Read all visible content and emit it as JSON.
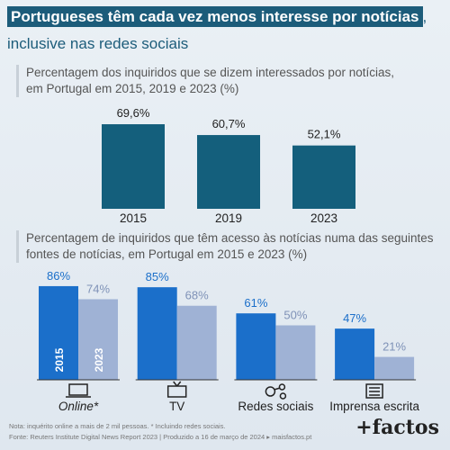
{
  "header": {
    "title_highlight": "Portugueses têm cada vez menos interesse por notícias",
    "title_rest": ", inclusive nas redes sociais"
  },
  "chart_data": [
    {
      "type": "bar",
      "title": "Percentagem dos inquiridos que se dizem interessados por notícias, em Portugal em 2015, 2019 e 2023 (%)",
      "categories": [
        "2015",
        "2019",
        "2023"
      ],
      "values": [
        69.6,
        60.7,
        52.1
      ],
      "value_labels": [
        "69,6%",
        "60,7%",
        "52,1%"
      ],
      "color": "#145f7c"
    },
    {
      "type": "grouped_bar",
      "title": "Percentagem de inquiridos que têm acesso às notícias numa das seguintes fontes de notícias, em Portugal em 2015 e 2023 (%)",
      "categories": [
        "Online*",
        "TV",
        "Redes sociais",
        "Imprensa escrita"
      ],
      "series": [
        {
          "name": "2015",
          "color": "#1b6fca",
          "values": [
            86,
            85,
            61,
            47
          ],
          "value_labels": [
            "86%",
            "85%",
            "61%",
            "47%"
          ]
        },
        {
          "name": "2023",
          "color": "#9fb2d5",
          "values": [
            74,
            68,
            50,
            21
          ],
          "value_labels": [
            "74%",
            "68%",
            "50%",
            "21%"
          ]
        }
      ]
    }
  ],
  "footer": {
    "note": "Nota: inquérito online a mais de 2 mil pessoas. * Incluindo redes sociais.",
    "source": "Fonte: Reuters Institute Digital News Report 2023 | Produzido a 16 de março de 2024 ▸ maisfactos.pt",
    "logo": "+factos"
  }
}
